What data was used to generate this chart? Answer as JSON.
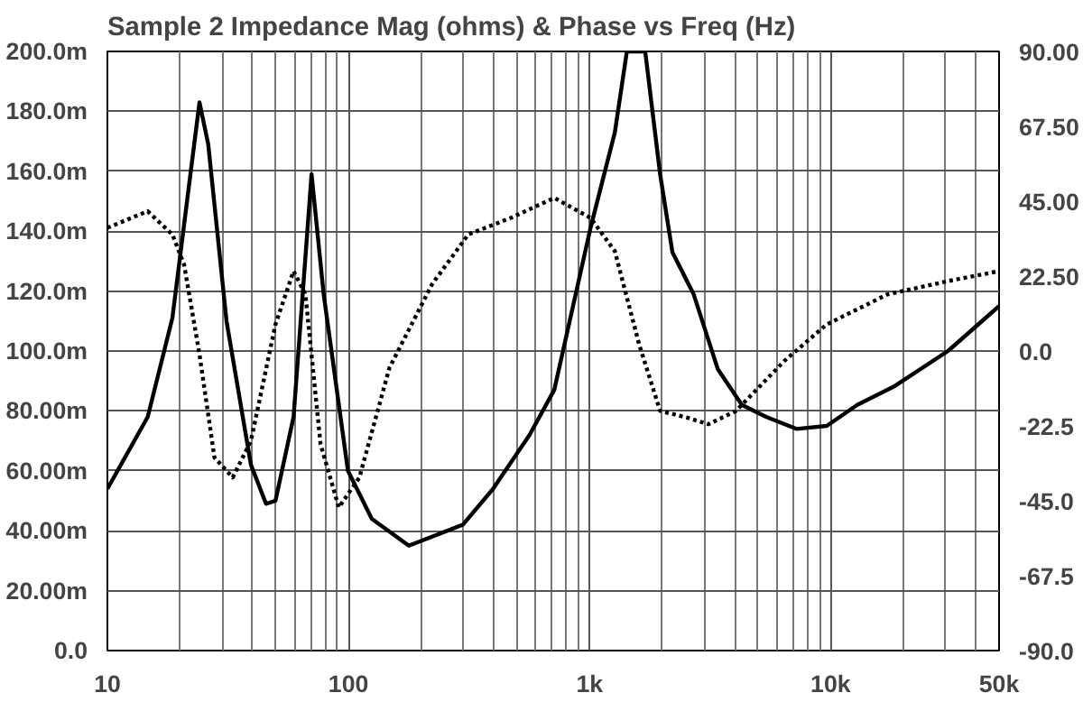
{
  "chart_data": {
    "type": "line",
    "title": "Sample 2 Impedance Mag (ohms) & Phase vs Freq (Hz)",
    "log": "x",
    "grid": true,
    "xlim": [
      10,
      50000
    ],
    "ylim": [
      0,
      200
    ],
    "y2lim": [
      -90,
      90
    ],
    "xticks": [
      10,
      100,
      {
        "value": 1000,
        "label": "1k"
      },
      {
        "value": 10000,
        "label": "10k"
      },
      {
        "value": 50000,
        "label": "50k"
      }
    ],
    "yticks": [
      {
        "value": 0,
        "label": "0.0"
      },
      {
        "value": 20,
        "label": "20.00m"
      },
      {
        "value": 40,
        "label": "40.00m"
      },
      {
        "value": 60,
        "label": "60.00m"
      },
      {
        "value": 80,
        "label": "80.00m"
      },
      {
        "value": 100,
        "label": "100.0m"
      },
      {
        "value": 120,
        "label": "120.0m"
      },
      {
        "value": 140,
        "label": "140.0m"
      },
      {
        "value": 160,
        "label": "160.0m"
      },
      {
        "value": 180,
        "label": "180.0m"
      },
      {
        "value": 200,
        "label": "200.0m"
      }
    ],
    "y2ticks": [
      {
        "value": -90,
        "label": "-90.0"
      },
      {
        "value": -67.5,
        "label": "-67.5"
      },
      {
        "value": -45,
        "label": "-45.0"
      },
      {
        "value": -22.5,
        "label": "-22.5"
      },
      {
        "value": 0,
        "label": "0.0"
      },
      {
        "value": 22.5,
        "label": "22.50"
      },
      {
        "value": 45,
        "label": "45.00"
      },
      {
        "value": 67.5,
        "label": "67.50"
      },
      {
        "value": 90,
        "label": "90.00"
      }
    ],
    "series": [
      {
        "color": "#000000",
        "line_style": "solid",
        "x": [
          10,
          14.7,
          18.6,
          22.1,
          24.1,
          26.2,
          31.2,
          39.4,
          45.5,
          49.8,
          59.2,
          70.3,
          78.9,
          99.5,
          125,
          178,
          298,
          398,
          564,
          714,
          1009,
          1274,
          1429,
          1702,
          1963,
          2207,
          2702,
          3404,
          4285,
          5403,
          7213,
          9641,
          12900,
          18200,
          30700,
          50000
        ],
        "values": [
          54,
          78,
          111,
          159,
          183,
          169,
          110,
          62,
          49,
          50,
          78,
          159,
          119,
          60,
          44,
          35,
          42,
          54,
          72,
          87,
          141,
          173,
          200,
          200,
          159,
          133,
          119,
          94,
          82,
          78,
          74,
          75,
          82,
          88,
          100,
          115
        ]
      },
      {
        "color": "#000000",
        "line_style": "dotted",
        "axis": "y2",
        "x": [
          10,
          14.7,
          18.6,
          20.8,
          24.1,
          27.8,
          33.1,
          39.4,
          49.8,
          59.2,
          66.3,
          76.6,
          91.2,
          111,
          148,
          222,
          314,
          472,
          714,
          1009,
          1274,
          1606,
          1963,
          2540,
          3110,
          4050,
          6427,
          9641,
          17200,
          30700,
          50000
        ],
        "values": [
          37,
          42,
          35,
          26,
          -1,
          -32,
          -38,
          -27,
          8,
          24,
          17,
          -28,
          -47,
          -38,
          -5,
          20,
          35,
          40,
          46,
          40,
          30,
          2,
          -18,
          -20,
          -22,
          -18,
          -3,
          8,
          17,
          21,
          24
        ]
      }
    ]
  }
}
